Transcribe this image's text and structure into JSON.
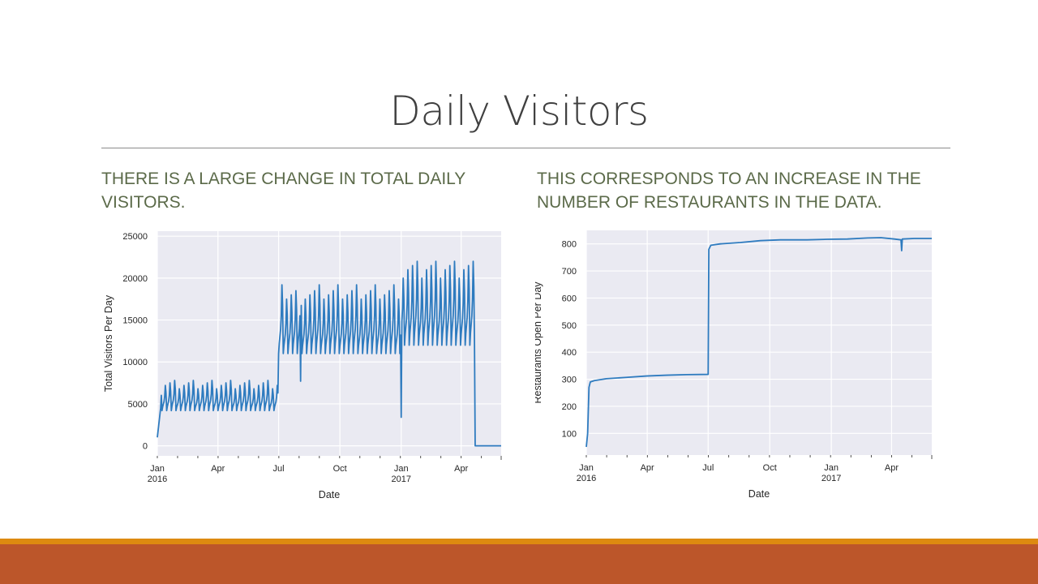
{
  "slide": {
    "title": "Daily Visitors",
    "caption_left": "THERE IS A LARGE CHANGE IN TOTAL DAILY VISITORS.",
    "caption_right": "THIS CORRESPONDS TO AN INCREASE IN THE NUMBER OF RESTAURANTS IN THE DATA.",
    "accent_colors": {
      "text": "#5b6a49",
      "footer_top": "#dd8a10",
      "footer_bottom": "#bc562a",
      "line": "#2e7bbf",
      "plot_bg": "#eaeaf2"
    }
  },
  "chart_data": [
    {
      "type": "line",
      "id": "visitors",
      "title": "",
      "xlabel": "Date",
      "ylabel": "Total Visitors Per Day",
      "xlim": [
        0,
        516
      ],
      "ylim": [
        -1200,
        25600
      ],
      "yticks": [
        0,
        5000,
        10000,
        15000,
        20000,
        25000
      ],
      "ytick_labels": [
        "0",
        "5000",
        "10000",
        "15000",
        "20000",
        "25000"
      ],
      "xticks": [
        {
          "day": 0,
          "label": "Jan",
          "sub": "2016"
        },
        {
          "day": 91,
          "label": "Apr",
          "sub": ""
        },
        {
          "day": 182,
          "label": "Jul",
          "sub": ""
        },
        {
          "day": 274,
          "label": "Oct",
          "sub": ""
        },
        {
          "day": 366,
          "label": "Jan",
          "sub": "2017"
        },
        {
          "day": 456,
          "label": "Apr",
          "sub": ""
        }
      ],
      "grid": true,
      "series": [
        {
          "name": "visitors",
          "segments": [
            {
              "start": 0,
              "end": 181,
              "base": 4200,
              "amp": [
                2600,
                3000,
                3300,
                3600
              ],
              "ramp": true
            },
            {
              "start": 182,
              "end": 364,
              "base": 11000,
              "amp": [
                8200,
                6500,
                7000,
                7500
              ],
              "dips": [
                [
                  215,
                  7700
                ]
              ]
            },
            {
              "start": 365,
              "end": 476,
              "base": 12000,
              "amp": [
                8000,
                9000,
                9500,
                10000
              ],
              "dips": [
                [
                  366,
                  3400
                ]
              ],
              "peaks": [
                [
                  360,
                  24100
                ]
              ]
            }
          ],
          "drop_to_zero_day": 477,
          "end_day": 516
        }
      ]
    },
    {
      "type": "line",
      "id": "restaurants",
      "title": "",
      "xlabel": "Date",
      "ylabel": "Restaurants Open Per Day",
      "xlim": [
        0,
        516
      ],
      "ylim": [
        20,
        850
      ],
      "yticks": [
        100,
        200,
        300,
        400,
        500,
        600,
        700,
        800
      ],
      "ytick_labels": [
        "100",
        "200",
        "300",
        "400",
        "500",
        "600",
        "700",
        "800"
      ],
      "xticks": [
        {
          "day": 0,
          "label": "Jan",
          "sub": "2016"
        },
        {
          "day": 91,
          "label": "Apr",
          "sub": ""
        },
        {
          "day": 182,
          "label": "Jul",
          "sub": ""
        },
        {
          "day": 274,
          "label": "Oct",
          "sub": ""
        },
        {
          "day": 366,
          "label": "Jan",
          "sub": "2017"
        },
        {
          "day": 456,
          "label": "Apr",
          "sub": ""
        }
      ],
      "grid": true,
      "series": [
        {
          "name": "restaurants",
          "points": [
            [
              0,
              50
            ],
            [
              2,
              100
            ],
            [
              4,
              270
            ],
            [
              6,
              290
            ],
            [
              12,
              295
            ],
            [
              30,
              302
            ],
            [
              60,
              307
            ],
            [
              90,
              312
            ],
            [
              120,
              315
            ],
            [
              150,
              317
            ],
            [
              181,
              318
            ],
            [
              182,
              318
            ],
            [
              183,
              780
            ],
            [
              186,
              795
            ],
            [
              200,
              800
            ],
            [
              230,
              805
            ],
            [
              260,
              812
            ],
            [
              290,
              815
            ],
            [
              330,
              815
            ],
            [
              360,
              817
            ],
            [
              390,
              818
            ],
            [
              420,
              822
            ],
            [
              440,
              823
            ],
            [
              460,
              818
            ],
            [
              470,
              815
            ],
            [
              471,
              775
            ],
            [
              472,
              818
            ],
            [
              490,
              820
            ],
            [
              516,
              820
            ]
          ]
        }
      ]
    }
  ]
}
